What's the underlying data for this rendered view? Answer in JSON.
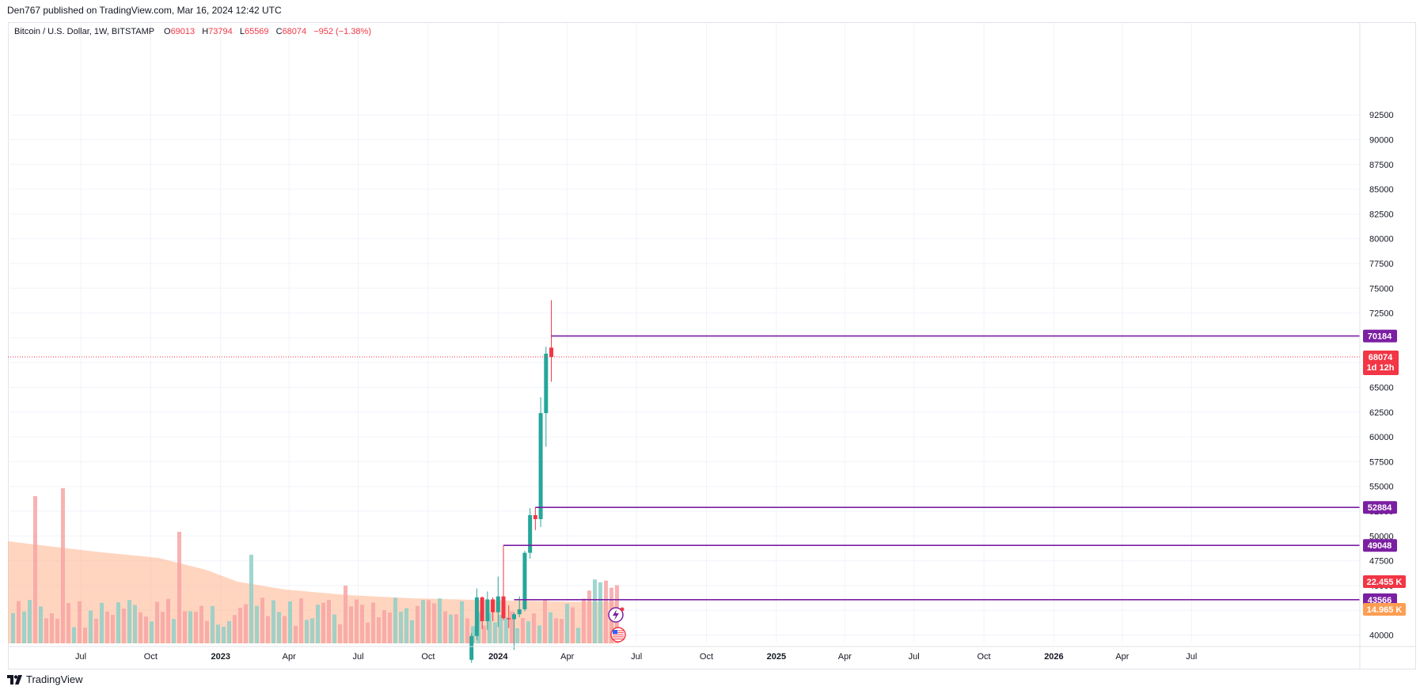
{
  "header": {
    "publish_text": "Den767 published on TradingView.com, Mar 16, 2024 12:42 UTC"
  },
  "legend": {
    "symbol": "Bitcoin / U.S. Dollar, 1W, BITSTAMP",
    "open_label": "O",
    "open": "69013",
    "high_label": "H",
    "high": "73794",
    "low_label": "L",
    "low": "65569",
    "close_label": "C",
    "close": "68074",
    "change": "−952 (−1.38%)"
  },
  "footer": {
    "brand": "TradingView",
    "logo_icon": "tradingview-logo-icon"
  },
  "colors": {
    "up": "#26a69a",
    "down": "#f23645",
    "level_line": "#7b1fa2",
    "volume_up": "#8fcfc8",
    "volume_down": "#f7a5a5",
    "volume_ma": "#ffb38a",
    "price_tag": "#f23645",
    "ma_tag": "#ff9d52"
  },
  "chart_data": {
    "type": "candlestick",
    "title": "Bitcoin / U.S. Dollar, 1W, BITSTAMP",
    "y_axis": {
      "ticks": [
        "40000",
        "42500",
        "45000",
        "47500",
        "50000",
        "52500",
        "55000",
        "57500",
        "60000",
        "62500",
        "65000",
        "67500",
        "70000",
        "72500",
        "75000",
        "77500",
        "80000",
        "82500",
        "85000",
        "87500",
        "90000",
        "92500"
      ],
      "range": [
        39000,
        93800
      ]
    },
    "x_axis": {
      "ticks": [
        {
          "label": "Jul",
          "date": "2022-07",
          "bold": false
        },
        {
          "label": "Oct",
          "date": "2022-10",
          "bold": false
        },
        {
          "label": "2023",
          "date": "2023-01",
          "bold": true
        },
        {
          "label": "Apr",
          "date": "2023-04",
          "bold": false
        },
        {
          "label": "Jul",
          "date": "2023-07",
          "bold": false
        },
        {
          "label": "Oct",
          "date": "2023-10",
          "bold": false
        },
        {
          "label": "2024",
          "date": "2024-01",
          "bold": true
        },
        {
          "label": "Apr",
          "date": "2024-04",
          "bold": false
        },
        {
          "label": "Jul",
          "date": "2024-07",
          "bold": false
        },
        {
          "label": "Oct",
          "date": "2024-10",
          "bold": false
        },
        {
          "label": "2025",
          "date": "2025-01",
          "bold": true
        },
        {
          "label": "Apr",
          "date": "2025-04",
          "bold": false
        },
        {
          "label": "Jul",
          "date": "2025-07",
          "bold": false
        },
        {
          "label": "Oct",
          "date": "2025-10",
          "bold": false
        },
        {
          "label": "2026",
          "date": "2026-01",
          "bold": true
        },
        {
          "label": "Apr",
          "date": "2026-04",
          "bold": false
        },
        {
          "label": "Jul",
          "date": "2026-07",
          "bold": false
        }
      ]
    },
    "candles": [
      {
        "date": "2023-11-27",
        "o": 37500,
        "h": 40200,
        "l": 37200,
        "c": 39900
      },
      {
        "date": "2023-12-04",
        "o": 39900,
        "h": 44700,
        "l": 39500,
        "c": 43800
      },
      {
        "date": "2023-12-11",
        "o": 43800,
        "h": 43900,
        "l": 40600,
        "c": 41400
      },
      {
        "date": "2023-12-18",
        "o": 41400,
        "h": 44400,
        "l": 40500,
        "c": 43600
      },
      {
        "date": "2023-12-25",
        "o": 43600,
        "h": 43800,
        "l": 41400,
        "c": 42300
      },
      {
        "date": "2024-01-01",
        "o": 42300,
        "h": 45900,
        "l": 40800,
        "c": 43900
      },
      {
        "date": "2024-01-08",
        "o": 43900,
        "h": 49048,
        "l": 41500,
        "c": 41700
      },
      {
        "date": "2024-01-15",
        "o": 41700,
        "h": 43000,
        "l": 40700,
        "c": 41600
      },
      {
        "date": "2024-01-22",
        "o": 41600,
        "h": 42300,
        "l": 38500,
        "c": 42100
      },
      {
        "date": "2024-01-29",
        "o": 42100,
        "h": 43900,
        "l": 41800,
        "c": 42600
      },
      {
        "date": "2024-02-05",
        "o": 42600,
        "h": 48500,
        "l": 42400,
        "c": 48300
      },
      {
        "date": "2024-02-12",
        "o": 48300,
        "h": 52800,
        "l": 47700,
        "c": 52100
      },
      {
        "date": "2024-02-19",
        "o": 52100,
        "h": 52884,
        "l": 50600,
        "c": 51700
      },
      {
        "date": "2024-02-26",
        "o": 51700,
        "h": 64000,
        "l": 50900,
        "c": 62400
      },
      {
        "date": "2024-03-04",
        "o": 62400,
        "h": 69100,
        "l": 59000,
        "c": 68400
      },
      {
        "date": "2024-03-11",
        "o": 69013,
        "h": 73794,
        "l": 65569,
        "c": 68074
      }
    ],
    "volume": {
      "ma_tag": "14.965 K",
      "last_tag": "22.455 K"
    },
    "levels": [
      {
        "value": "70184",
        "from": "2024-03-11"
      },
      {
        "value": "52884",
        "from": "2024-02-19"
      },
      {
        "value": "49048",
        "from": "2024-01-08"
      },
      {
        "value": "43566",
        "from": "2024-01-22"
      }
    ],
    "last_price": {
      "value": "68074",
      "countdown": "1d 12h"
    },
    "event_icons": [
      "lightning-event-icon",
      "us-flag-event-icon"
    ]
  }
}
